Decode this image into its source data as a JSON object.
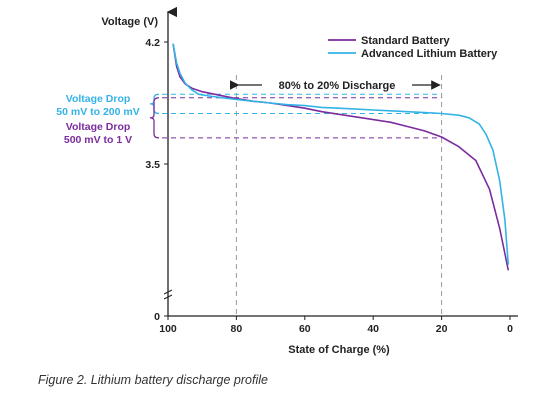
{
  "chart_data": {
    "type": "line",
    "title": "",
    "xlabel": "State of Charge (%)",
    "ylabel": "Voltage (V)",
    "x_reversed": true,
    "xlim": [
      100,
      0
    ],
    "x_ticks": [
      100,
      80,
      60,
      40,
      20,
      0
    ],
    "x_tick_labels": [
      "100",
      "80",
      "60",
      "40",
      "20",
      "0"
    ],
    "y_ticks": [
      0,
      3.5,
      4.2
    ],
    "y_tick_labels": [
      "0",
      "3.5",
      "4.2"
    ],
    "y_axis_broken": true,
    "series": [
      {
        "name": "Standard Battery",
        "color": "#7b2c9e",
        "points": [
          [
            98.5,
            4.19
          ],
          [
            97.5,
            4.06
          ],
          [
            96.5,
            4.0
          ],
          [
            95,
            3.96
          ],
          [
            93,
            3.935
          ],
          [
            90,
            3.915
          ],
          [
            85,
            3.895
          ],
          [
            80,
            3.875
          ],
          [
            75,
            3.86
          ],
          [
            70,
            3.85
          ],
          [
            65,
            3.835
          ],
          [
            60,
            3.82
          ],
          [
            55,
            3.8
          ],
          [
            50,
            3.785
          ],
          [
            45,
            3.77
          ],
          [
            40,
            3.755
          ],
          [
            35,
            3.74
          ],
          [
            30,
            3.715
          ],
          [
            25,
            3.69
          ],
          [
            20,
            3.655
          ],
          [
            15,
            3.6
          ],
          [
            10,
            3.52
          ],
          [
            6,
            3.41
          ],
          [
            3,
            3.27
          ],
          [
            1.5,
            3.18
          ],
          [
            0.5,
            3.12
          ]
        ]
      },
      {
        "name": "Advanced Lithium Battery",
        "color": "#33b3e6",
        "points": [
          [
            98.5,
            4.19
          ],
          [
            97.5,
            4.08
          ],
          [
            96.5,
            4.02
          ],
          [
            95,
            3.965
          ],
          [
            93,
            3.925
          ],
          [
            91,
            3.9
          ],
          [
            88,
            3.89
          ],
          [
            84,
            3.88
          ],
          [
            80,
            3.87
          ],
          [
            75,
            3.86
          ],
          [
            70,
            3.85
          ],
          [
            65,
            3.84
          ],
          [
            60,
            3.835
          ],
          [
            55,
            3.825
          ],
          [
            50,
            3.82
          ],
          [
            45,
            3.815
          ],
          [
            40,
            3.81
          ],
          [
            35,
            3.805
          ],
          [
            30,
            3.8
          ],
          [
            25,
            3.795
          ],
          [
            20,
            3.79
          ],
          [
            15,
            3.78
          ],
          [
            12,
            3.765
          ],
          [
            9,
            3.73
          ],
          [
            7,
            3.67
          ],
          [
            5,
            3.58
          ],
          [
            3,
            3.44
          ],
          [
            1.5,
            3.3
          ],
          [
            0.5,
            3.14
          ]
        ]
      }
    ],
    "legend": {
      "placement": "top-right",
      "entries": [
        {
          "label": "Standard Battery",
          "color": "#7b2c9e"
        },
        {
          "label": "Advanced Lithium Battery",
          "color": "#33b3e6"
        }
      ]
    },
    "annotations": {
      "span": {
        "text": "80% to 20% Discharge",
        "x_from": 80,
        "x_to": 20
      },
      "advanced_drop": {
        "line1": "Voltage Drop",
        "line2": "50 mV to 200 mV",
        "color": "#33b3e6",
        "v_top": 3.9,
        "v_bottom": 3.79
      },
      "standard_drop": {
        "line1": "Voltage Drop",
        "line2": "500 mV to 1 V",
        "color": "#7b2c9e",
        "v_top": 3.88,
        "v_bottom": 3.65
      }
    }
  },
  "caption": "Figure 2. Lithium battery discharge profile"
}
